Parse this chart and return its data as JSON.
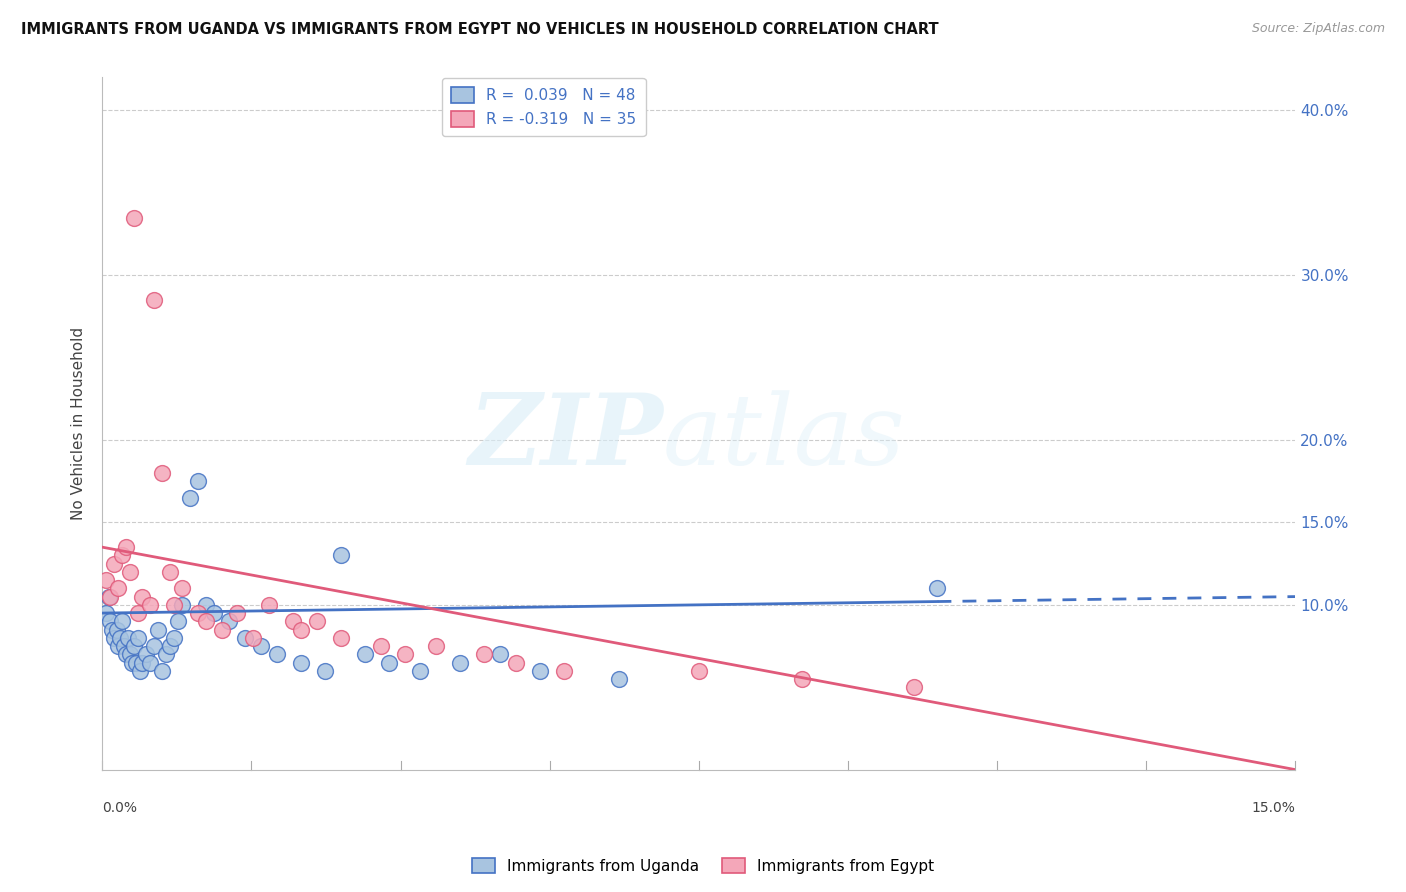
{
  "title": "IMMIGRANTS FROM UGANDA VS IMMIGRANTS FROM EGYPT NO VEHICLES IN HOUSEHOLD CORRELATION CHART",
  "source": "Source: ZipAtlas.com",
  "ylabel": "No Vehicles in Household",
  "xlim": [
    0.0,
    15.0
  ],
  "ylim": [
    0.0,
    42.0
  ],
  "ytick_vals": [
    10.0,
    15.0,
    20.0,
    30.0,
    40.0
  ],
  "xtick_positions": [
    0.0,
    1.875,
    3.75,
    5.625,
    7.5,
    9.375,
    11.25,
    13.125,
    15.0
  ],
  "uganda_color": "#a8c4e0",
  "egypt_color": "#f4a7b9",
  "uganda_line_color": "#4472c4",
  "egypt_line_color": "#e05a7a",
  "uganda_R": 0.039,
  "uganda_N": 48,
  "egypt_R": -0.319,
  "egypt_N": 35,
  "background_color": "#ffffff",
  "grid_color": "#cccccc",
  "uganda_x": [
    0.05,
    0.08,
    0.1,
    0.12,
    0.15,
    0.18,
    0.2,
    0.22,
    0.25,
    0.28,
    0.3,
    0.32,
    0.35,
    0.38,
    0.4,
    0.42,
    0.45,
    0.48,
    0.5,
    0.55,
    0.6,
    0.65,
    0.7,
    0.75,
    0.8,
    0.85,
    0.9,
    0.95,
    1.0,
    1.1,
    1.2,
    1.3,
    1.4,
    1.6,
    1.8,
    2.0,
    2.2,
    2.5,
    2.8,
    3.0,
    3.3,
    3.6,
    4.0,
    4.5,
    5.0,
    5.5,
    6.5,
    10.5
  ],
  "uganda_y": [
    9.5,
    10.5,
    9.0,
    8.5,
    8.0,
    8.5,
    7.5,
    8.0,
    9.0,
    7.5,
    7.0,
    8.0,
    7.0,
    6.5,
    7.5,
    6.5,
    8.0,
    6.0,
    6.5,
    7.0,
    6.5,
    7.5,
    8.5,
    6.0,
    7.0,
    7.5,
    8.0,
    9.0,
    10.0,
    16.5,
    17.5,
    10.0,
    9.5,
    9.0,
    8.0,
    7.5,
    7.0,
    6.5,
    6.0,
    13.0,
    7.0,
    6.5,
    6.0,
    6.5,
    7.0,
    6.0,
    5.5,
    11.0
  ],
  "egypt_x": [
    0.05,
    0.1,
    0.15,
    0.2,
    0.25,
    0.3,
    0.35,
    0.4,
    0.45,
    0.5,
    0.6,
    0.65,
    0.75,
    0.85,
    0.9,
    1.0,
    1.2,
    1.3,
    1.5,
    1.7,
    1.9,
    2.1,
    2.4,
    2.5,
    2.7,
    3.0,
    3.5,
    3.8,
    4.2,
    4.8,
    5.2,
    5.8,
    7.5,
    8.8,
    10.2
  ],
  "egypt_y": [
    11.5,
    10.5,
    12.5,
    11.0,
    13.0,
    13.5,
    12.0,
    33.5,
    9.5,
    10.5,
    10.0,
    28.5,
    18.0,
    12.0,
    10.0,
    11.0,
    9.5,
    9.0,
    8.5,
    9.5,
    8.0,
    10.0,
    9.0,
    8.5,
    9.0,
    8.0,
    7.5,
    7.0,
    7.5,
    7.0,
    6.5,
    6.0,
    6.0,
    5.5,
    5.0
  ],
  "uganda_line_y0": 9.5,
  "uganda_line_y1": 10.5,
  "egypt_line_y0": 13.5,
  "egypt_line_y1": 0.0,
  "uganda_data_max_x": 10.5
}
